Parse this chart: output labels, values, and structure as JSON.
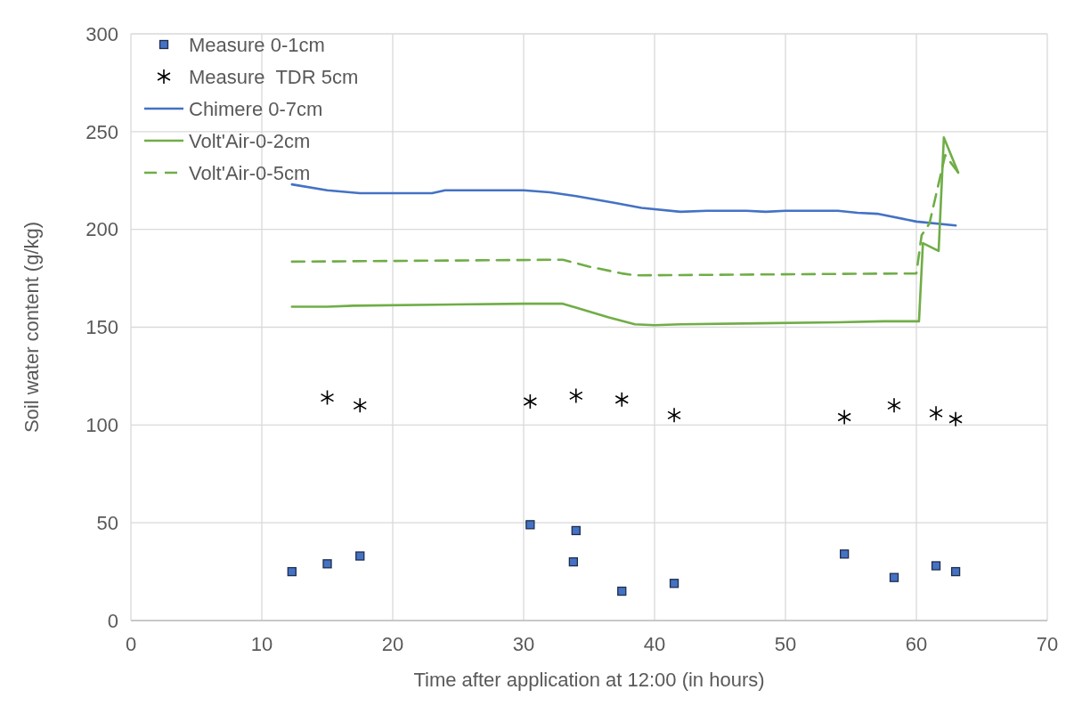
{
  "chart_data": {
    "type": "line",
    "xlabel": "Time after application at 12:00 (in hours)",
    "ylabel": "Soil water content (g/kg)",
    "xlim": [
      0,
      70
    ],
    "xticks": [
      0,
      10,
      20,
      30,
      40,
      50,
      60,
      70
    ],
    "ylim": [
      0,
      300
    ],
    "yticks": [
      0,
      50,
      100,
      150,
      200,
      250,
      300
    ],
    "grid": true,
    "legend": "top left",
    "series": [
      {
        "name": "Measure 0-1cm",
        "type": "scatter",
        "marker": "square",
        "color": "#4472c4",
        "x": [
          12.3,
          15,
          17.5,
          30.5,
          33.8,
          34,
          37.5,
          41.5,
          54.5,
          58.3,
          61.5,
          63
        ],
        "values": [
          25,
          29,
          33,
          49,
          30,
          46,
          15,
          19,
          34,
          22,
          28,
          25
        ]
      },
      {
        "name": "Measure  TDR 5cm",
        "type": "scatter",
        "marker": "cross",
        "color": "#000000",
        "x": [
          15,
          17.5,
          30.5,
          34,
          37.5,
          41.5,
          54.5,
          58.3,
          61.5,
          63
        ],
        "values": [
          114,
          110,
          112,
          115,
          113,
          105,
          104,
          110,
          106,
          103
        ]
      },
      {
        "name": "Chimere 0-7cm",
        "line_style": "solid",
        "color": "#4472c4",
        "x": [
          12.3,
          15,
          17.5,
          23,
          24,
          30,
          32,
          34,
          37,
          39,
          42,
          44,
          47,
          48.5,
          50,
          54,
          55.5,
          57,
          60,
          63
        ],
        "values": [
          223,
          220,
          218.5,
          218.5,
          220,
          220,
          219,
          217,
          213.5,
          211,
          209,
          209.5,
          209.5,
          209,
          209.5,
          209.5,
          208.5,
          208,
          204,
          202
        ]
      },
      {
        "name": "Volt'Air-0-2cm",
        "line_style": "solid",
        "color": "#70ad47",
        "x": [
          12.3,
          15,
          17,
          30,
          33,
          34,
          36.5,
          38.5,
          40,
          42,
          48,
          54,
          57.5,
          60.2,
          60.5,
          61.7,
          62.1,
          63.2
        ],
        "values": [
          160.5,
          160.5,
          161,
          162,
          162,
          160,
          155,
          151.5,
          151,
          151.5,
          152,
          152.5,
          153,
          153,
          193,
          189,
          247,
          229
        ]
      },
      {
        "name": "Volt'Air-0-5cm",
        "line_style": "dashed",
        "color": "#70ad47",
        "x": [
          12.3,
          33,
          35,
          37.5,
          38.5,
          60,
          60.4,
          61,
          62.2,
          63.2
        ],
        "values": [
          183.5,
          184.5,
          181,
          177.5,
          176.5,
          177.5,
          197,
          203,
          238,
          229
        ]
      }
    ]
  }
}
